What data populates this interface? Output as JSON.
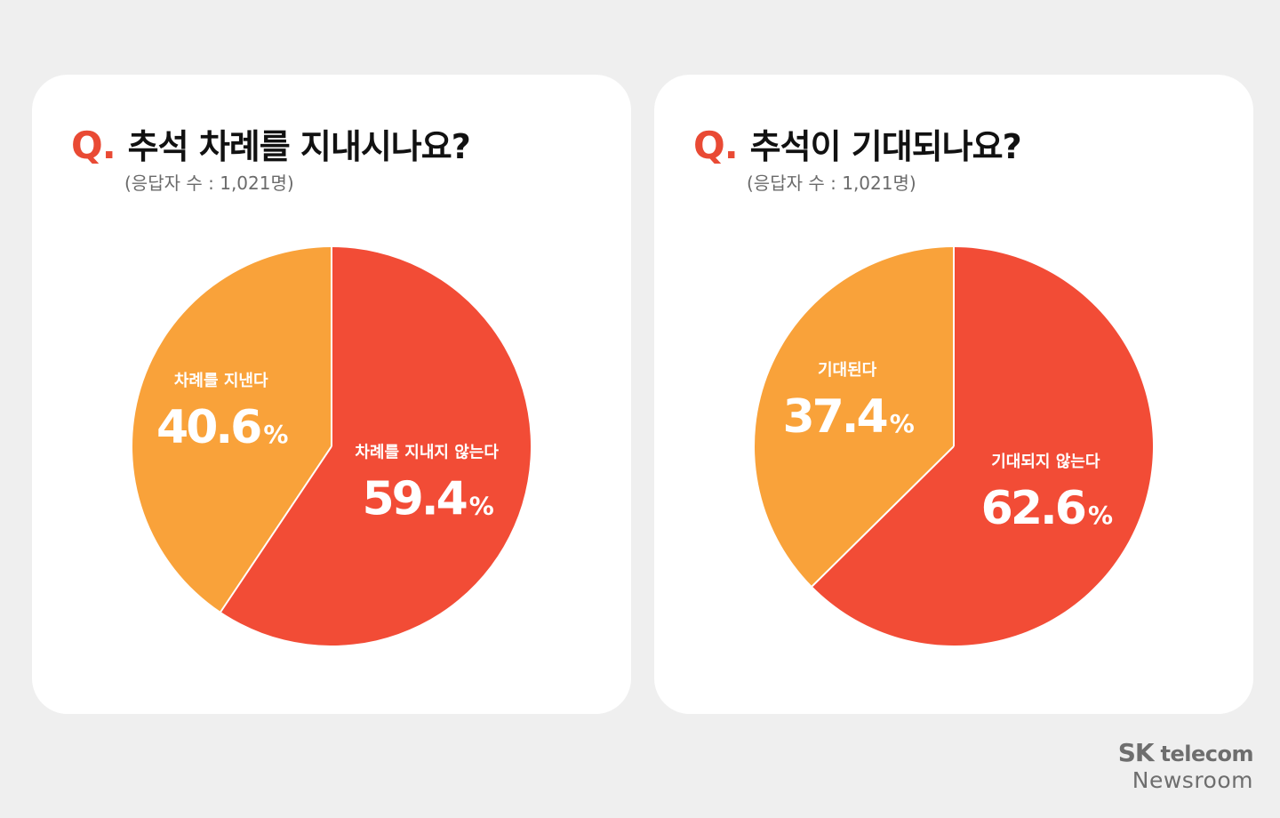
{
  "chart_data": [
    {
      "type": "pie",
      "q_mark": "Q.",
      "title": "추석 차례를 지내시나요?",
      "subtitle": "(응답자 수 : 1,021명)",
      "slices": [
        {
          "label": "차례를 지내지 않는다",
          "value": 59.4,
          "display": "59.4",
          "color": "#f24c36"
        },
        {
          "label": "차례를 지낸다",
          "value": 40.6,
          "display": "40.6",
          "color": "#f9a23a"
        }
      ],
      "unit": "%"
    },
    {
      "type": "pie",
      "q_mark": "Q.",
      "title": "추석이 기대되나요?",
      "subtitle": "(응답자 수 : 1,021명)",
      "slices": [
        {
          "label": "기대되지 않는다",
          "value": 62.6,
          "display": "62.6",
          "color": "#f24c36"
        },
        {
          "label": "기대된다",
          "value": 37.4,
          "display": "37.4",
          "color": "#f9a23a"
        }
      ],
      "unit": "%"
    }
  ],
  "brand": {
    "sk": "SK",
    "telecom": "telecom",
    "newsroom": "Newsroom"
  }
}
